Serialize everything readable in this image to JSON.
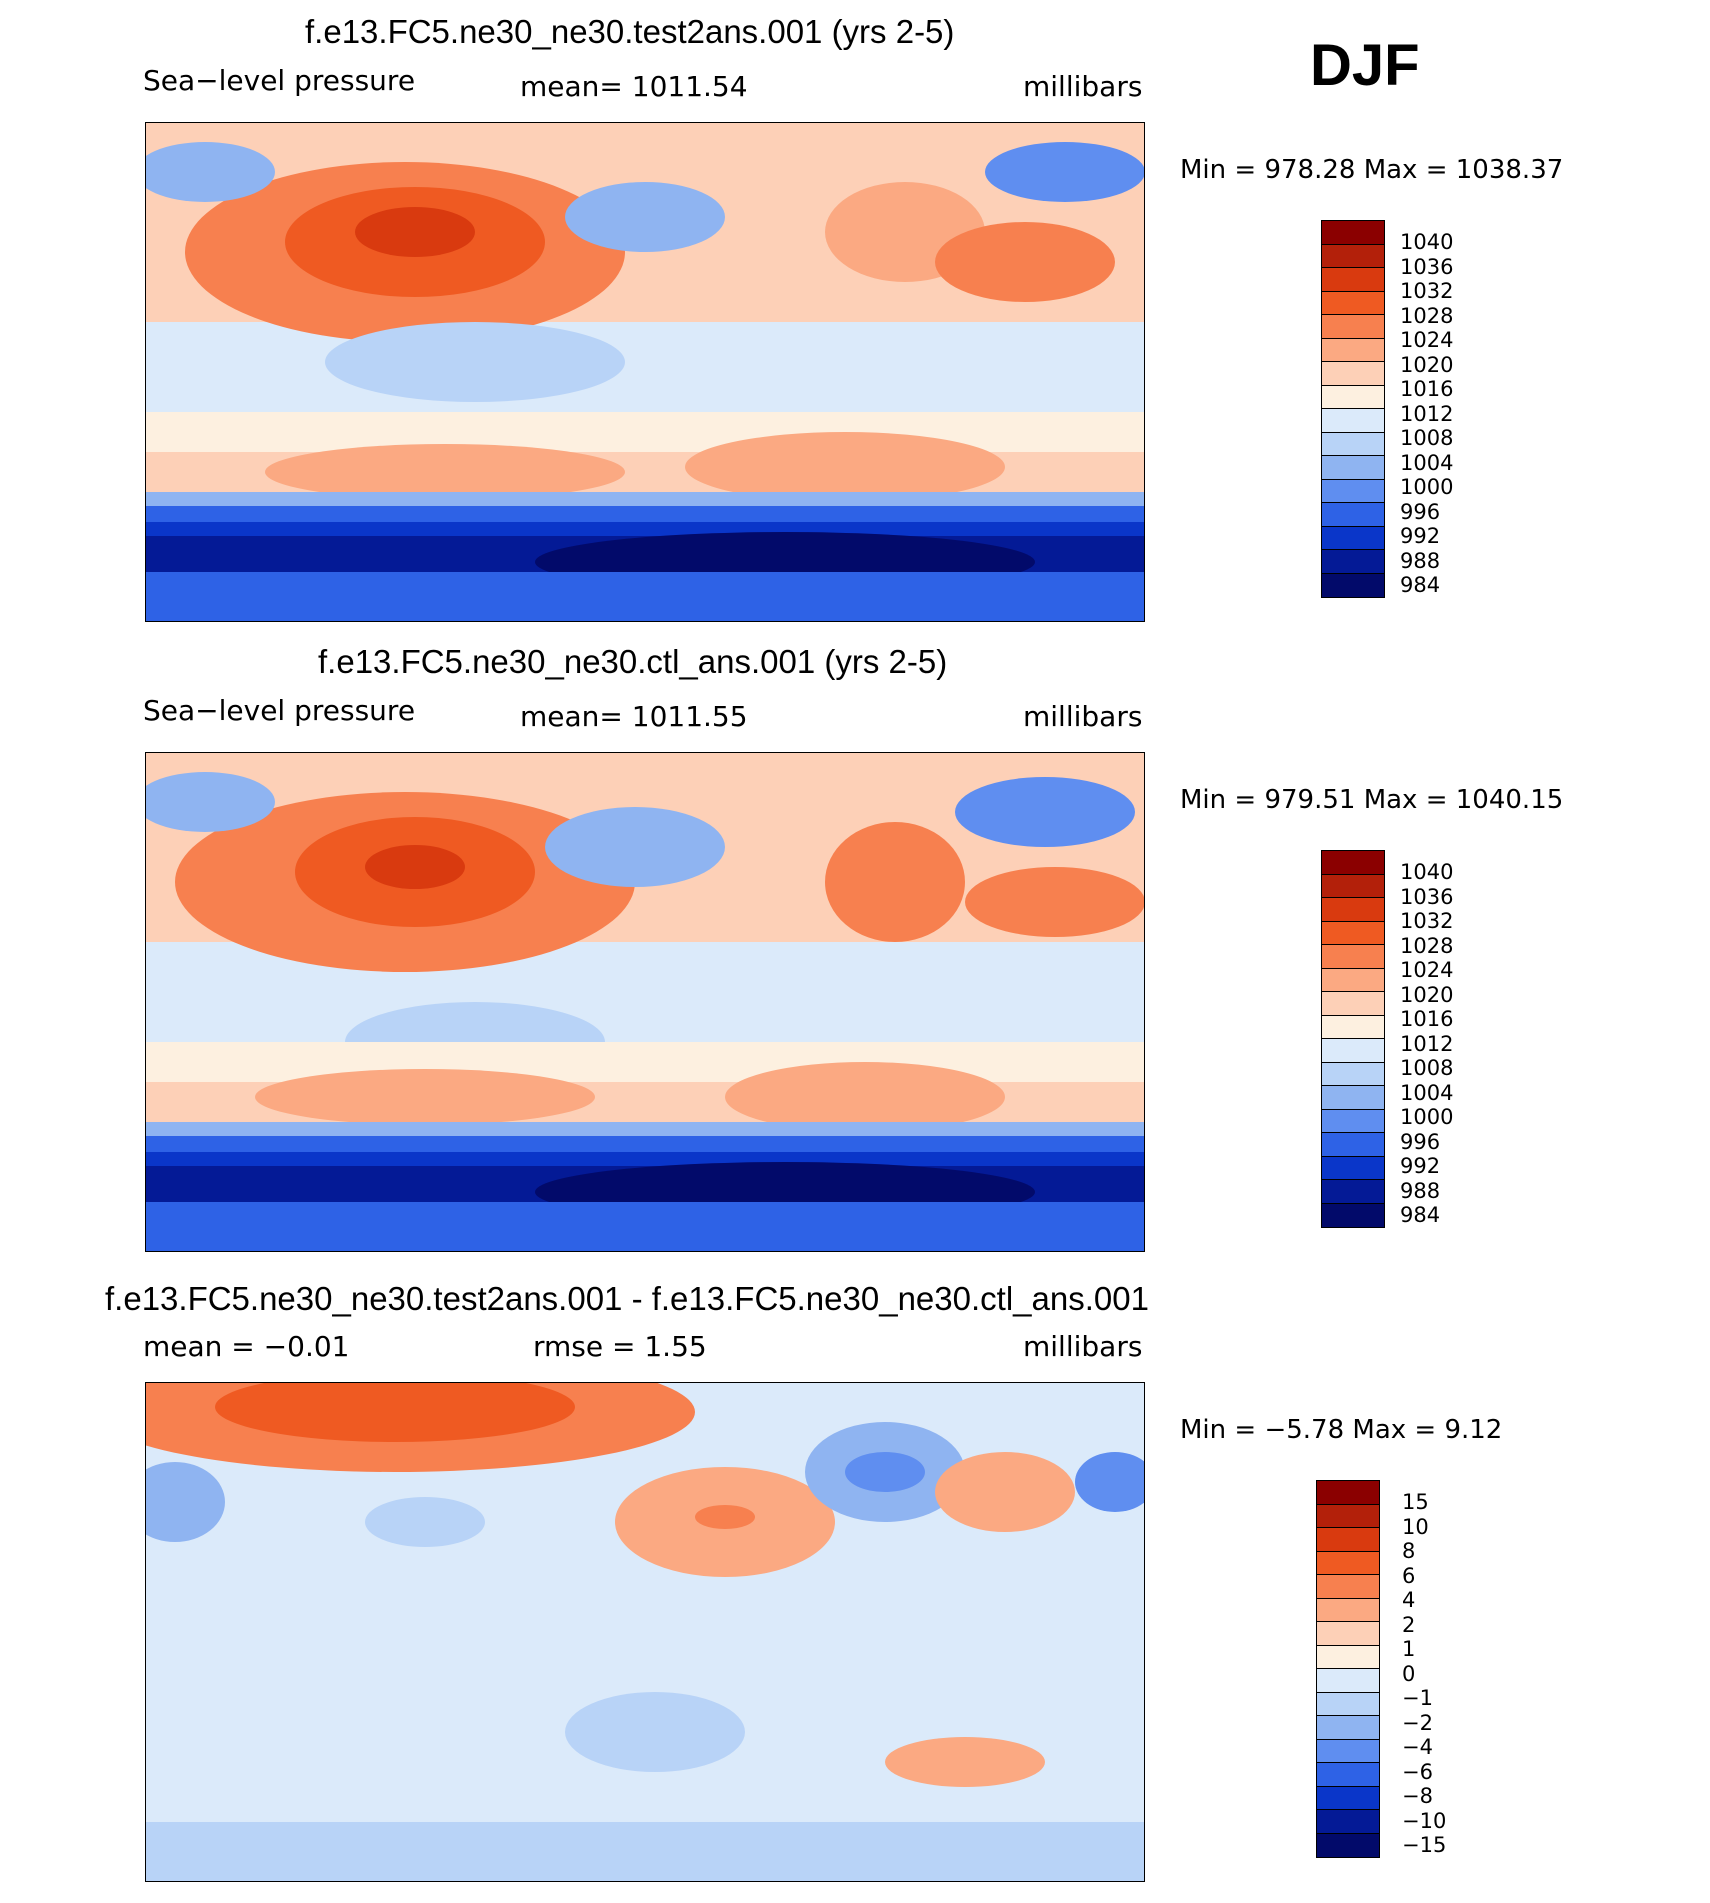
{
  "season": "DJF",
  "panels": [
    {
      "title": "f.e13.FC5.ne30_ne30.test2ans.001 (yrs 2-5)",
      "left_label": "Sea−level  pressure",
      "center_label": "mean=  1011.54",
      "units": "millibars",
      "minmax": "Min  =  978.28  Max  =  1038.37"
    },
    {
      "title": "f.e13.FC5.ne30_ne30.ctl_ans.001 (yrs 2-5)",
      "left_label": "Sea−level  pressure",
      "center_label": "mean=  1011.55",
      "units": "millibars",
      "minmax": "Min  =  979.51  Max  =  1040.15"
    },
    {
      "title": "f.e13.FC5.ne30_ne30.test2ans.001 - f.e13.FC5.ne30_ne30.ctl_ans.001",
      "left_label": "mean  =    −0.01",
      "center_label": "rmse  =     1.55",
      "units": "millibars",
      "minmax": "Min  =    −5.78  Max  =      9.12"
    }
  ],
  "chart_data": [
    {
      "type": "heatmap",
      "title": "f.e13.FC5.ne30_ne30.test2ans.001 (yrs 2-5)",
      "variable": "Sea-level pressure",
      "units": "millibars",
      "mean": 1011.54,
      "min": 978.28,
      "max": 1038.37,
      "colorbar_levels": [
        "1040",
        "1036",
        "1032",
        "1028",
        "1024",
        "1020",
        "1016",
        "1012",
        "1008",
        "1004",
        "1000",
        "996",
        "992",
        "988",
        "984"
      ]
    },
    {
      "type": "heatmap",
      "title": "f.e13.FC5.ne30_ne30.ctl_ans.001 (yrs 2-5)",
      "variable": "Sea-level pressure",
      "units": "millibars",
      "mean": 1011.55,
      "min": 979.51,
      "max": 1040.15,
      "colorbar_levels": [
        "1040",
        "1036",
        "1032",
        "1028",
        "1024",
        "1020",
        "1016",
        "1012",
        "1008",
        "1004",
        "1000",
        "996",
        "992",
        "988",
        "984"
      ]
    },
    {
      "type": "heatmap",
      "title": "f.e13.FC5.ne30_ne30.test2ans.001 - f.e13.FC5.ne30_ne30.ctl_ans.001",
      "variable": "Sea-level pressure difference",
      "units": "millibars",
      "mean": -0.01,
      "rmse": 1.55,
      "min": -5.78,
      "max": 9.12,
      "colorbar_levels": [
        "15",
        "10",
        "8",
        "6",
        "4",
        "2",
        "1",
        "0",
        "−1",
        "−2",
        "−4",
        "−6",
        "−8",
        "−10",
        "−15"
      ]
    }
  ],
  "palette": [
    "#8b0000",
    "#b3200a",
    "#d93a0f",
    "#ef5a22",
    "#f7804f",
    "#fba982",
    "#fdd0b7",
    "#fdf0e0",
    "#dbeafa",
    "#b8d3f7",
    "#8fb4f1",
    "#5f8ef0",
    "#2e62e6",
    "#0a36c9",
    "#041a96",
    "#020a6a"
  ]
}
